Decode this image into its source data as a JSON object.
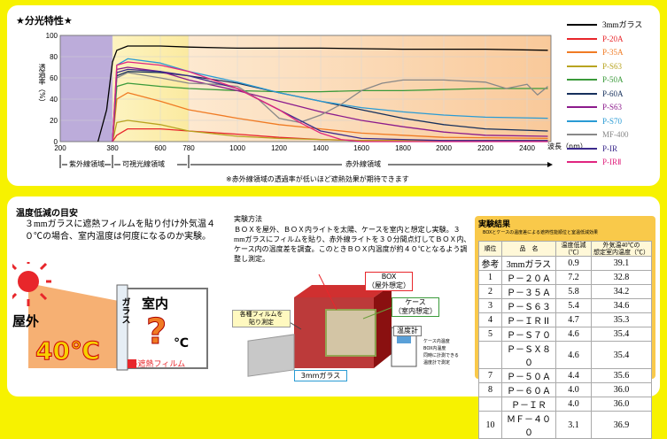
{
  "spectrum": {
    "title": "★分光特性★",
    "ylabel": "透過率（%）",
    "xunit": "波長（nm）",
    "regions": [
      "紫外線領域",
      "可視光線領域",
      "赤外線領域"
    ],
    "note": "※赤外線領域の透過率が低いほど遮熱効果が期待できます"
  },
  "chart_data": {
    "type": "line",
    "title": "★分光特性★",
    "ylabel": "透過率（%）",
    "xlabel": "波長（nm）",
    "xlim": [
      200,
      2500
    ],
    "ylim": [
      0,
      100
    ],
    "x_ticks": [
      200,
      380,
      600,
      780,
      1000,
      1200,
      1400,
      1600,
      1800,
      2000,
      2200,
      2400
    ],
    "y_ticks": [
      0,
      20,
      40,
      60,
      80,
      100
    ],
    "legend_position": "right",
    "series": [
      {
        "name": "3mmガラス",
        "color": "#000000",
        "x": [
          330,
          360,
          380,
          400,
          450,
          600,
          780,
          1000,
          1400,
          1800,
          2200,
          2500
        ],
        "y": [
          0,
          30,
          75,
          86,
          90,
          90,
          89,
          88,
          88,
          87,
          87,
          86
        ]
      },
      {
        "name": "P-20A",
        "color": "#e8262b",
        "x": [
          380,
          400,
          450,
          600,
          780,
          1000,
          1200,
          1400,
          1600,
          2500
        ],
        "y": [
          0,
          6,
          12,
          12,
          10,
          7,
          4,
          2,
          1,
          1
        ]
      },
      {
        "name": "P-35A",
        "color": "#f07b24",
        "x": [
          380,
          400,
          450,
          600,
          780,
          1000,
          1200,
          1400,
          1600,
          1800,
          2000,
          2500
        ],
        "y": [
          0,
          40,
          46,
          38,
          30,
          22,
          16,
          12,
          8,
          6,
          4,
          3
        ]
      },
      {
        "name": "P-S63",
        "color": "#b8a420",
        "x": [
          380,
          400,
          450,
          600,
          780,
          1000,
          1200,
          1400,
          1600,
          2500
        ],
        "y": [
          0,
          18,
          20,
          16,
          10,
          5,
          3,
          2,
          1,
          1
        ]
      },
      {
        "name": "P-50A",
        "color": "#3a9a3a",
        "x": [
          380,
          400,
          450,
          600,
          780,
          1000,
          1200,
          1400,
          1600,
          1800,
          2000,
          2200,
          2500
        ],
        "y": [
          0,
          52,
          55,
          52,
          50,
          48,
          47,
          47,
          48,
          48,
          49,
          50,
          50
        ]
      },
      {
        "name": "P-60A",
        "color": "#16305c",
        "x": [
          380,
          400,
          450,
          600,
          780,
          1000,
          1200,
          1400,
          1600,
          1800,
          2000,
          2200,
          2500
        ],
        "y": [
          0,
          62,
          66,
          65,
          62,
          55,
          46,
          38,
          30,
          22,
          16,
          12,
          10
        ]
      },
      {
        "name": "P-S63",
        "color": "#8c1b8c",
        "x": [
          380,
          400,
          450,
          600,
          780,
          1000,
          1200,
          1400,
          1600,
          1800,
          2000,
          2200,
          2500
        ],
        "y": [
          0,
          68,
          70,
          66,
          58,
          48,
          38,
          28,
          20,
          14,
          9,
          6,
          5
        ]
      },
      {
        "name": "P-S70",
        "color": "#2a9bd4",
        "x": [
          380,
          400,
          450,
          600,
          780,
          1000,
          1200,
          1400,
          1600,
          1800,
          2000,
          2200,
          2500
        ],
        "y": [
          0,
          72,
          78,
          74,
          66,
          56,
          46,
          38,
          32,
          28,
          25,
          23,
          22
        ]
      },
      {
        "name": "MF-400",
        "color": "#888888",
        "x": [
          380,
          400,
          450,
          600,
          780,
          900,
          1000,
          1100,
          1200,
          1300,
          1400,
          1500,
          1600,
          1700,
          1800,
          2000,
          2200,
          2300,
          2400,
          2450,
          2500
        ],
        "y": [
          0,
          60,
          65,
          60,
          55,
          54,
          52,
          40,
          22,
          18,
          25,
          35,
          48,
          55,
          58,
          58,
          56,
          50,
          54,
          44,
          52
        ]
      },
      {
        "name": "P-IR",
        "color": "#3b2a8c",
        "x": [
          380,
          400,
          450,
          600,
          780,
          1000,
          1200,
          1400,
          1600,
          1800,
          2000,
          2200,
          2500
        ],
        "y": [
          0,
          65,
          68,
          66,
          62,
          50,
          30,
          10,
          3,
          2,
          1,
          1,
          1
        ]
      },
      {
        "name": "P-IRⅡ",
        "color": "#e0257f",
        "x": [
          380,
          400,
          450,
          600,
          780,
          1000,
          1100,
          1200,
          1300,
          1400,
          1500,
          1600,
          2500
        ],
        "y": [
          0,
          72,
          75,
          72,
          66,
          50,
          40,
          30,
          18,
          8,
          2,
          0,
          0
        ]
      }
    ]
  },
  "temperature": {
    "heading": "温度低減の目安",
    "intro": "３mmガラスに遮熱フィルムを貼り付け外気温４０℃の場合、室内温度は何度になるのか実験。",
    "outdoor_label": "屋外",
    "outdoor_temp": "40℃",
    "indoor_label": "室内",
    "glass_label": "ガラス",
    "unknown_temp": "?",
    "unknown_unit": "℃",
    "film_label": "遮熱フィルム"
  },
  "method": {
    "heading": "実験方法",
    "text": "ＢＯＸを屋外、ＢＯＸ内ライトを太陽、ケースを室内と想定し実験。３mmガラスにフィルムを貼り、赤外線ライトを３０分間点灯してＢＯＸ内、ケース内の温度差を調査。このときＢＯＸ内温度が約４０℃となるよう調整し測定。",
    "labels": {
      "box": "BOX\n（屋外想定）",
      "case": "ケース\n（室内想定）",
      "film": "各種フィルムを\n貼り測定",
      "glass": "3mmガラス",
      "thermometer": "温度計",
      "thermo_notes": "ケース内温度\nBOX内温度\n同時に計測できる\n温度計で測定"
    }
  },
  "results": {
    "title": "実験結果",
    "subtitle": "BOXとケースの温度差による遮熱性能順位と室温低減効果",
    "headers": [
      "順位",
      "品　名",
      "温度低減\n（℃）",
      "外気温40℃の\n想定室内温度（℃）"
    ],
    "rows": [
      {
        "rank": "参考",
        "name": "3mmガラス",
        "reduction": "0.9",
        "temp": "39.1"
      },
      {
        "rank": "1",
        "name": "Ｐ－２０Ａ",
        "reduction": "7.2",
        "temp": "32.8"
      },
      {
        "rank": "2",
        "name": "Ｐ－３５Ａ",
        "reduction": "5.8",
        "temp": "34.2"
      },
      {
        "rank": "3",
        "name": "Ｐ－Ｓ６３",
        "reduction": "5.4",
        "temp": "34.6"
      },
      {
        "rank": "4",
        "name": "Ｐ－ＩＲⅡ",
        "reduction": "4.7",
        "temp": "35.3"
      },
      {
        "rank": "5",
        "name": "Ｐ－Ｓ７０",
        "reduction": "4.6",
        "temp": "35.4"
      },
      {
        "rank": "",
        "name": "Ｐ－ＳＸ８０",
        "reduction": "4.6",
        "temp": "35.4"
      },
      {
        "rank": "7",
        "name": "Ｐ－５０Ａ",
        "reduction": "4.4",
        "temp": "35.6"
      },
      {
        "rank": "8",
        "name": "Ｐ－６０Ａ",
        "reduction": "4.0",
        "temp": "36.0"
      },
      {
        "rank": "",
        "name": "Ｐ－ＩＲ",
        "reduction": "4.0",
        "temp": "36.0"
      },
      {
        "rank": "10",
        "name": "ＭＦ－４００",
        "reduction": "3.1",
        "temp": "36.9"
      }
    ]
  }
}
